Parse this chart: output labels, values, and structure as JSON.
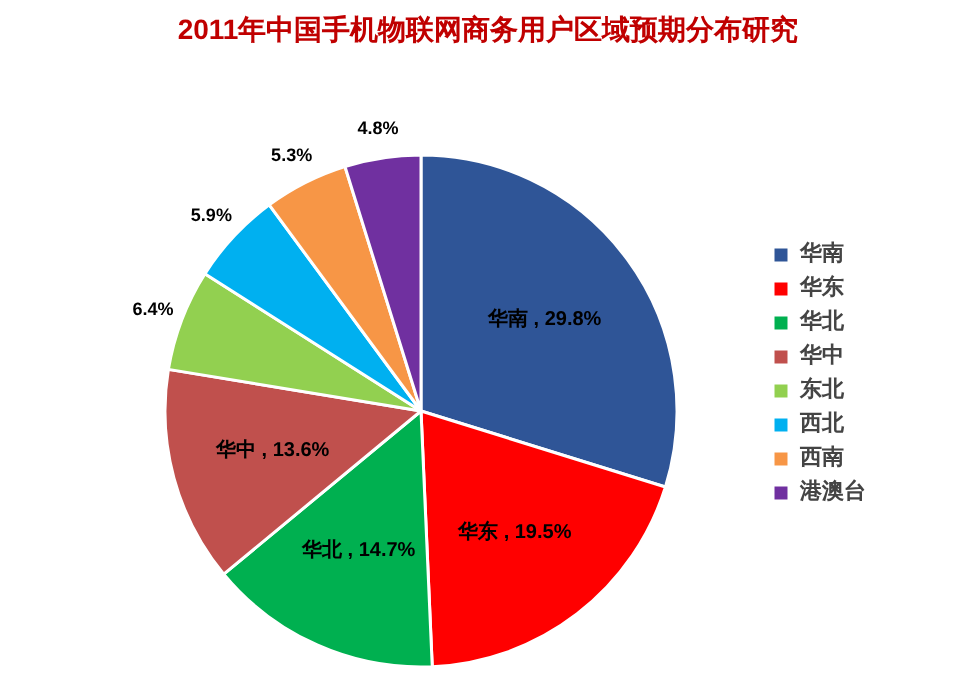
{
  "chart_data": {
    "type": "pie",
    "title": "2011年中国手机物联网商务用户区域预期分布研究",
    "categories": [
      "华南",
      "华东",
      "华北",
      "华中",
      "东北",
      "西北",
      "西南",
      "港澳台"
    ],
    "values": [
      29.8,
      19.5,
      14.7,
      13.6,
      6.4,
      5.9,
      5.3,
      4.8
    ],
    "colors": [
      "#2f5597",
      "#ff0000",
      "#00b050",
      "#c0504d",
      "#92d050",
      "#00b0f0",
      "#f79646",
      "#7030a0"
    ],
    "value_labels": [
      "华南 , 29.8%",
      "华东 , 19.5%",
      "华北 , 14.7%",
      "华中 , 13.6%",
      "6.4%",
      "5.9%",
      "5.3%",
      "4.8%"
    ],
    "legend": "right"
  }
}
